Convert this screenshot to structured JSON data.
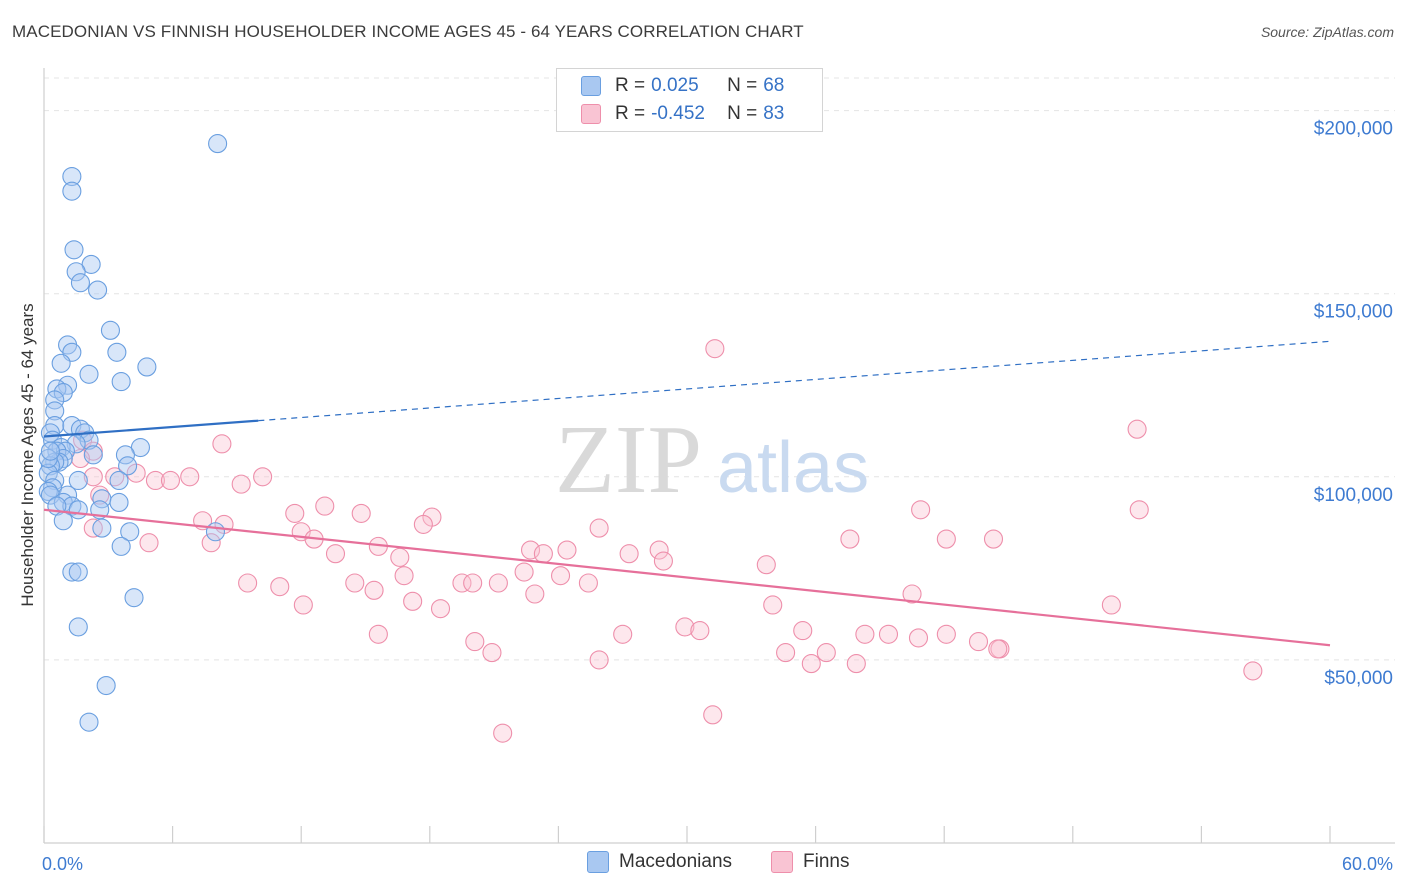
{
  "title": "MACEDONIAN VS FINNISH HOUSEHOLDER INCOME AGES 45 - 64 YEARS CORRELATION CHART",
  "source": "Source: ZipAtlas.com",
  "watermark": {
    "zip": "ZIP",
    "atlas": "atlas"
  },
  "legend": {
    "rows": [
      {
        "r_label": "R = ",
        "r_value": "0.025",
        "n_label": "N = ",
        "n_value": "68",
        "color": "#a9c8f1",
        "border": "#6a9fe0"
      },
      {
        "r_label": "R = ",
        "r_value": "-0.452",
        "n_label": "N = ",
        "n_value": "83",
        "color": "#f9c4d3",
        "border": "#ee8fab"
      }
    ]
  },
  "bottom_legend": [
    {
      "label": "Macedonians",
      "color": "#a9c8f1",
      "border": "#6a9fe0"
    },
    {
      "label": "Finns",
      "color": "#f9c4d3",
      "border": "#ee8fab"
    }
  ],
  "chart_data": {
    "type": "scatter",
    "title": "MACEDONIAN VS FINNISH HOUSEHOLDER INCOME AGES 45 - 64 YEARS CORRELATION CHART",
    "xlabel": "",
    "ylabel": "Householder Income Ages 45 - 64 years",
    "x_unit": "%",
    "xlim": [
      0,
      60
    ],
    "ylim": [
      0,
      210000
    ],
    "x_tick_labels": [
      "0.0%",
      "60.0%"
    ],
    "y_ticks": [
      50000,
      100000,
      150000,
      200000
    ],
    "y_tick_labels": [
      "$50,000",
      "$100,000",
      "$150,000",
      "$200,000"
    ],
    "grid": true,
    "legend_position": "top-center",
    "series": [
      {
        "name": "Macedonians",
        "color": "#6a9fe0",
        "fill": "rgba(169,200,241,0.45)",
        "trend_color": "#2f6fc4",
        "trend": {
          "x0": 0.0,
          "y0": 111000,
          "x1": 60.0,
          "y1": 137000,
          "solid_until": 10.0
        },
        "points": [
          [
            8.1,
            191000
          ],
          [
            1.3,
            182000
          ],
          [
            1.3,
            178000
          ],
          [
            1.4,
            162000
          ],
          [
            2.2,
            158000
          ],
          [
            1.5,
            156000
          ],
          [
            1.7,
            153000
          ],
          [
            2.5,
            151000
          ],
          [
            3.1,
            140000
          ],
          [
            1.1,
            136000
          ],
          [
            1.3,
            134000
          ],
          [
            3.4,
            134000
          ],
          [
            0.8,
            131000
          ],
          [
            2.1,
            128000
          ],
          [
            4.8,
            130000
          ],
          [
            3.6,
            126000
          ],
          [
            1.1,
            125000
          ],
          [
            0.6,
            124000
          ],
          [
            0.9,
            123000
          ],
          [
            0.5,
            121000
          ],
          [
            0.5,
            118000
          ],
          [
            0.5,
            114000
          ],
          [
            1.3,
            114000
          ],
          [
            1.7,
            113000
          ],
          [
            1.9,
            112000
          ],
          [
            0.3,
            112000
          ],
          [
            0.4,
            110000
          ],
          [
            2.1,
            110000
          ],
          [
            1.5,
            109000
          ],
          [
            0.8,
            108000
          ],
          [
            4.5,
            108000
          ],
          [
            1.0,
            107000
          ],
          [
            0.6,
            107000
          ],
          [
            2.3,
            106000
          ],
          [
            3.8,
            106000
          ],
          [
            0.9,
            105000
          ],
          [
            0.7,
            104000
          ],
          [
            0.5,
            104000
          ],
          [
            0.3,
            103000
          ],
          [
            3.9,
            103000
          ],
          [
            0.2,
            101000
          ],
          [
            3.5,
            99000
          ],
          [
            1.6,
            99000
          ],
          [
            0.5,
            99000
          ],
          [
            0.4,
            97000
          ],
          [
            0.2,
            96000
          ],
          [
            0.3,
            95000
          ],
          [
            1.1,
            95000
          ],
          [
            2.7,
            94000
          ],
          [
            3.5,
            93000
          ],
          [
            0.9,
            93000
          ],
          [
            1.3,
            92000
          ],
          [
            0.6,
            92000
          ],
          [
            1.6,
            91000
          ],
          [
            2.6,
            91000
          ],
          [
            0.9,
            88000
          ],
          [
            2.7,
            86000
          ],
          [
            4.0,
            85000
          ],
          [
            8.0,
            85000
          ],
          [
            3.6,
            81000
          ],
          [
            1.3,
            74000
          ],
          [
            1.6,
            74000
          ],
          [
            4.2,
            67000
          ],
          [
            1.6,
            59000
          ],
          [
            2.9,
            43000
          ],
          [
            2.1,
            33000
          ],
          [
            0.2,
            105000
          ],
          [
            0.3,
            107000
          ]
        ]
      },
      {
        "name": "Finns",
        "color": "#ee8fab",
        "fill": "rgba(249,196,211,0.40)",
        "trend_color": "#e6709a",
        "trend": {
          "x0": 0.0,
          "y0": 91000,
          "x1": 60.0,
          "y1": 54000,
          "solid_until": 60.0
        },
        "points": [
          [
            31.3,
            135000
          ],
          [
            51.0,
            113000
          ],
          [
            1.8,
            110000
          ],
          [
            8.3,
            109000
          ],
          [
            2.3,
            107000
          ],
          [
            1.7,
            105000
          ],
          [
            4.3,
            101000
          ],
          [
            2.3,
            100000
          ],
          [
            6.8,
            100000
          ],
          [
            10.2,
            100000
          ],
          [
            3.3,
            100000
          ],
          [
            5.2,
            99000
          ],
          [
            5.9,
            99000
          ],
          [
            9.2,
            98000
          ],
          [
            2.6,
            95000
          ],
          [
            13.1,
            92000
          ],
          [
            51.1,
            91000
          ],
          [
            40.9,
            91000
          ],
          [
            11.7,
            90000
          ],
          [
            14.8,
            90000
          ],
          [
            18.1,
            89000
          ],
          [
            7.4,
            88000
          ],
          [
            17.7,
            87000
          ],
          [
            8.4,
            87000
          ],
          [
            2.3,
            86000
          ],
          [
            25.9,
            86000
          ],
          [
            12.0,
            85000
          ],
          [
            42.1,
            83000
          ],
          [
            12.6,
            83000
          ],
          [
            44.3,
            83000
          ],
          [
            37.6,
            83000
          ],
          [
            4.9,
            82000
          ],
          [
            7.8,
            82000
          ],
          [
            15.6,
            81000
          ],
          [
            22.7,
            80000
          ],
          [
            23.3,
            79000
          ],
          [
            24.4,
            80000
          ],
          [
            28.7,
            80000
          ],
          [
            27.3,
            79000
          ],
          [
            13.6,
            79000
          ],
          [
            16.6,
            78000
          ],
          [
            28.9,
            77000
          ],
          [
            33.7,
            76000
          ],
          [
            22.4,
            74000
          ],
          [
            24.1,
            73000
          ],
          [
            16.8,
            73000
          ],
          [
            9.5,
            71000
          ],
          [
            19.5,
            71000
          ],
          [
            14.5,
            71000
          ],
          [
            20.0,
            71000
          ],
          [
            21.2,
            71000
          ],
          [
            25.4,
            71000
          ],
          [
            11.0,
            70000
          ],
          [
            15.4,
            69000
          ],
          [
            22.9,
            68000
          ],
          [
            40.5,
            68000
          ],
          [
            17.2,
            66000
          ],
          [
            12.1,
            65000
          ],
          [
            34.0,
            65000
          ],
          [
            49.8,
            65000
          ],
          [
            18.5,
            64000
          ],
          [
            29.9,
            59000
          ],
          [
            30.6,
            58000
          ],
          [
            35.4,
            58000
          ],
          [
            38.3,
            57000
          ],
          [
            40.8,
            56000
          ],
          [
            42.1,
            57000
          ],
          [
            39.4,
            57000
          ],
          [
            15.6,
            57000
          ],
          [
            27.0,
            57000
          ],
          [
            20.1,
            55000
          ],
          [
            43.6,
            55000
          ],
          [
            20.9,
            52000
          ],
          [
            34.6,
            52000
          ],
          [
            36.5,
            52000
          ],
          [
            44.6,
            53000
          ],
          [
            25.9,
            50000
          ],
          [
            35.8,
            49000
          ],
          [
            37.9,
            49000
          ],
          [
            56.4,
            47000
          ],
          [
            31.2,
            35000
          ],
          [
            21.4,
            30000
          ],
          [
            44.5,
            53000
          ]
        ]
      }
    ]
  }
}
